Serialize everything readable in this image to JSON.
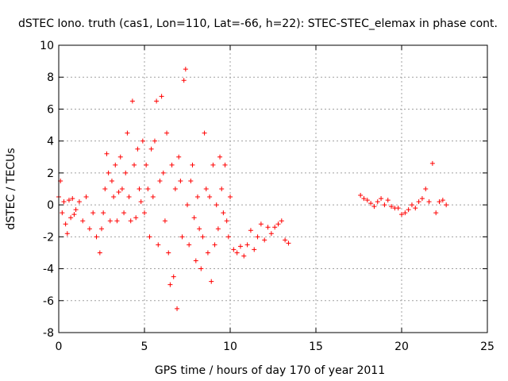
{
  "chart_data": {
    "type": "scatter",
    "title": "dSTEC Iono. truth (cas1, Lon=110, Lat=-66, h=22): STEC-STEC_elemax in phase cont.",
    "xlabel": "GPS time / hours of day 170 of year 2011",
    "ylabel": "dSTEC  / TECUs",
    "xlim": [
      0,
      25
    ],
    "ylim": [
      -8,
      10
    ],
    "xticks": [
      0,
      5,
      10,
      15,
      20,
      25
    ],
    "yticks": [
      -8,
      -6,
      -4,
      -2,
      0,
      2,
      4,
      6,
      8,
      10
    ],
    "grid": true,
    "marker": "+",
    "color": "#ff0000",
    "series": [
      {
        "x": [
          0.0,
          0.1,
          0.2,
          0.3,
          0.4,
          0.5,
          0.6,
          0.7,
          0.8,
          0.9,
          1.0,
          1.2,
          1.4,
          1.6,
          1.8,
          2.0,
          2.2,
          2.4,
          2.5,
          2.6,
          2.7,
          2.8,
          2.9,
          3.0,
          3.1,
          3.2,
          3.3,
          3.4,
          3.5,
          3.6,
          3.7,
          3.8,
          3.9,
          4.0,
          4.1,
          4.2,
          4.3,
          4.4,
          4.5,
          4.6,
          4.7,
          4.8,
          4.9,
          5.0,
          5.1,
          5.2,
          5.3,
          5.4,
          5.5,
          5.6,
          5.7,
          5.8,
          5.9,
          6.0,
          6.1,
          6.2,
          6.3,
          6.4,
          6.5,
          6.6,
          6.7,
          6.8,
          6.9,
          7.0,
          7.1,
          7.2,
          7.3,
          7.4,
          7.5,
          7.6,
          7.7,
          7.8,
          7.9,
          8.0,
          8.1,
          8.2,
          8.3,
          8.4,
          8.5,
          8.6,
          8.7,
          8.8,
          8.9,
          9.0,
          9.1,
          9.2,
          9.3,
          9.4,
          9.5,
          9.6,
          9.7,
          9.8,
          9.9,
          10.0,
          10.2,
          10.4,
          10.6,
          10.8,
          11.0,
          11.2,
          11.4,
          11.6,
          11.8,
          12.0,
          12.2,
          12.4,
          12.6,
          12.8,
          13.0,
          13.2,
          13.4,
          17.6,
          17.8,
          18.0,
          18.2,
          18.4,
          18.6,
          18.8,
          19.0,
          19.2,
          19.4,
          19.6,
          19.8,
          20.0,
          20.2,
          20.4,
          20.6,
          20.8,
          21.0,
          21.2,
          21.4,
          21.6,
          21.8,
          22.0,
          22.2,
          22.4,
          22.6
        ],
        "y": [
          0.5,
          1.5,
          -0.5,
          0.2,
          -1.2,
          -1.8,
          0.3,
          -0.8,
          0.4,
          -0.6,
          -0.3,
          0.2,
          -1.0,
          0.5,
          -1.5,
          -0.5,
          -2.0,
          -3.0,
          -1.5,
          -0.5,
          1.0,
          3.2,
          2.0,
          -1.0,
          1.5,
          0.5,
          2.5,
          -1.0,
          0.8,
          3.0,
          1.0,
          -0.5,
          2.0,
          4.5,
          0.5,
          -1.0,
          6.5,
          2.5,
          -0.8,
          3.5,
          1.0,
          0.2,
          4.0,
          -0.5,
          2.5,
          1.0,
          -2.0,
          3.5,
          0.5,
          4.0,
          6.5,
          -2.5,
          1.5,
          6.8,
          2.0,
          -1.0,
          4.5,
          -3.0,
          -5.0,
          2.5,
          -4.5,
          1.0,
          -6.5,
          3.0,
          1.5,
          -2.0,
          7.8,
          8.5,
          0.0,
          -2.5,
          1.5,
          2.5,
          -0.8,
          -3.5,
          0.5,
          -1.5,
          -4.0,
          -2.0,
          4.5,
          1.0,
          -3.0,
          0.5,
          -4.8,
          2.5,
          -2.5,
          0.0,
          -1.5,
          3.0,
          1.0,
          -0.5,
          2.5,
          -1.0,
          -2.0,
          0.5,
          -2.8,
          -3.0,
          -2.6,
          -3.2,
          -2.5,
          -1.6,
          -2.8,
          -2.0,
          -1.2,
          -2.2,
          -1.4,
          -1.8,
          -1.4,
          -1.2,
          -1.0,
          -2.2,
          -2.4,
          0.6,
          0.4,
          0.3,
          0.1,
          -0.1,
          0.2,
          0.4,
          0.0,
          0.3,
          -0.1,
          -0.2,
          -0.2,
          -0.6,
          -0.5,
          -0.3,
          0.0,
          -0.2,
          0.2,
          0.4,
          1.0,
          0.2,
          2.6,
          -0.5,
          0.2,
          0.3,
          0.0
        ]
      }
    ]
  }
}
